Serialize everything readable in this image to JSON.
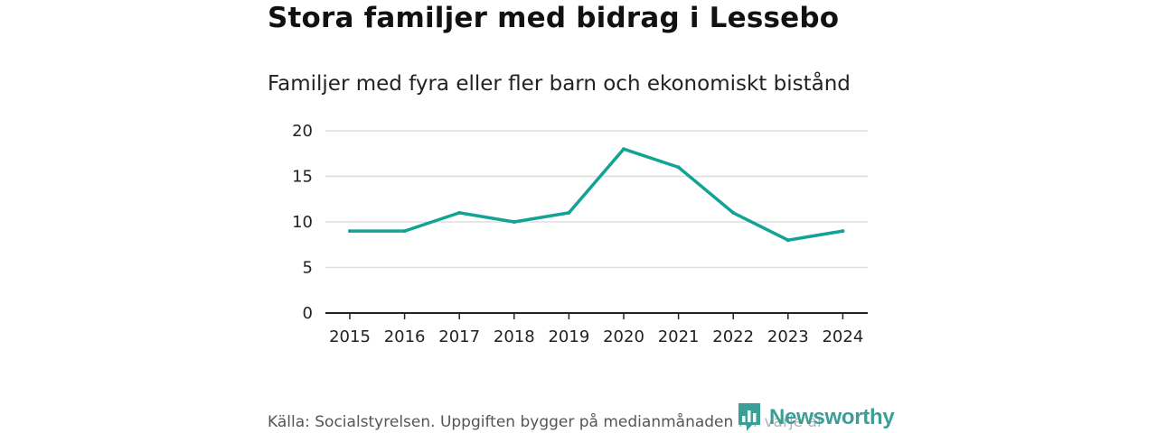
{
  "header": {
    "title": "Stora familjer med bidrag i Lessebo",
    "subtitle": "Familjer med fyra eller fler barn och ekonomiskt bistånd"
  },
  "footer": {
    "source": "Källa: Socialstyrelsen. Uppgiften bygger på medianmånaden för varje år",
    "brand": "Newsworthy",
    "brand_icon": "bar-chart-bubble-icon"
  },
  "colors": {
    "line": "#13a396",
    "brand": "#3a9f96",
    "grid": "#dddddd",
    "axis": "#222222"
  },
  "chart_data": {
    "type": "line",
    "title": "Familjer med fyra eller fler barn och ekonomiskt bistånd",
    "xlabel": "",
    "ylabel": "",
    "x": [
      "2015",
      "2016",
      "2017",
      "2018",
      "2019",
      "2020",
      "2021",
      "2022",
      "2023",
      "2024"
    ],
    "series": [
      {
        "name": "Familjer med fyra eller fler barn och ekonomiskt bistånd",
        "values": [
          9,
          9,
          11,
          10,
          11,
          18,
          16,
          11,
          8,
          9
        ]
      }
    ],
    "ylim": [
      0,
      20
    ],
    "yticks": [
      0,
      5,
      10,
      15,
      20
    ],
    "grid": true,
    "legend": "none"
  }
}
